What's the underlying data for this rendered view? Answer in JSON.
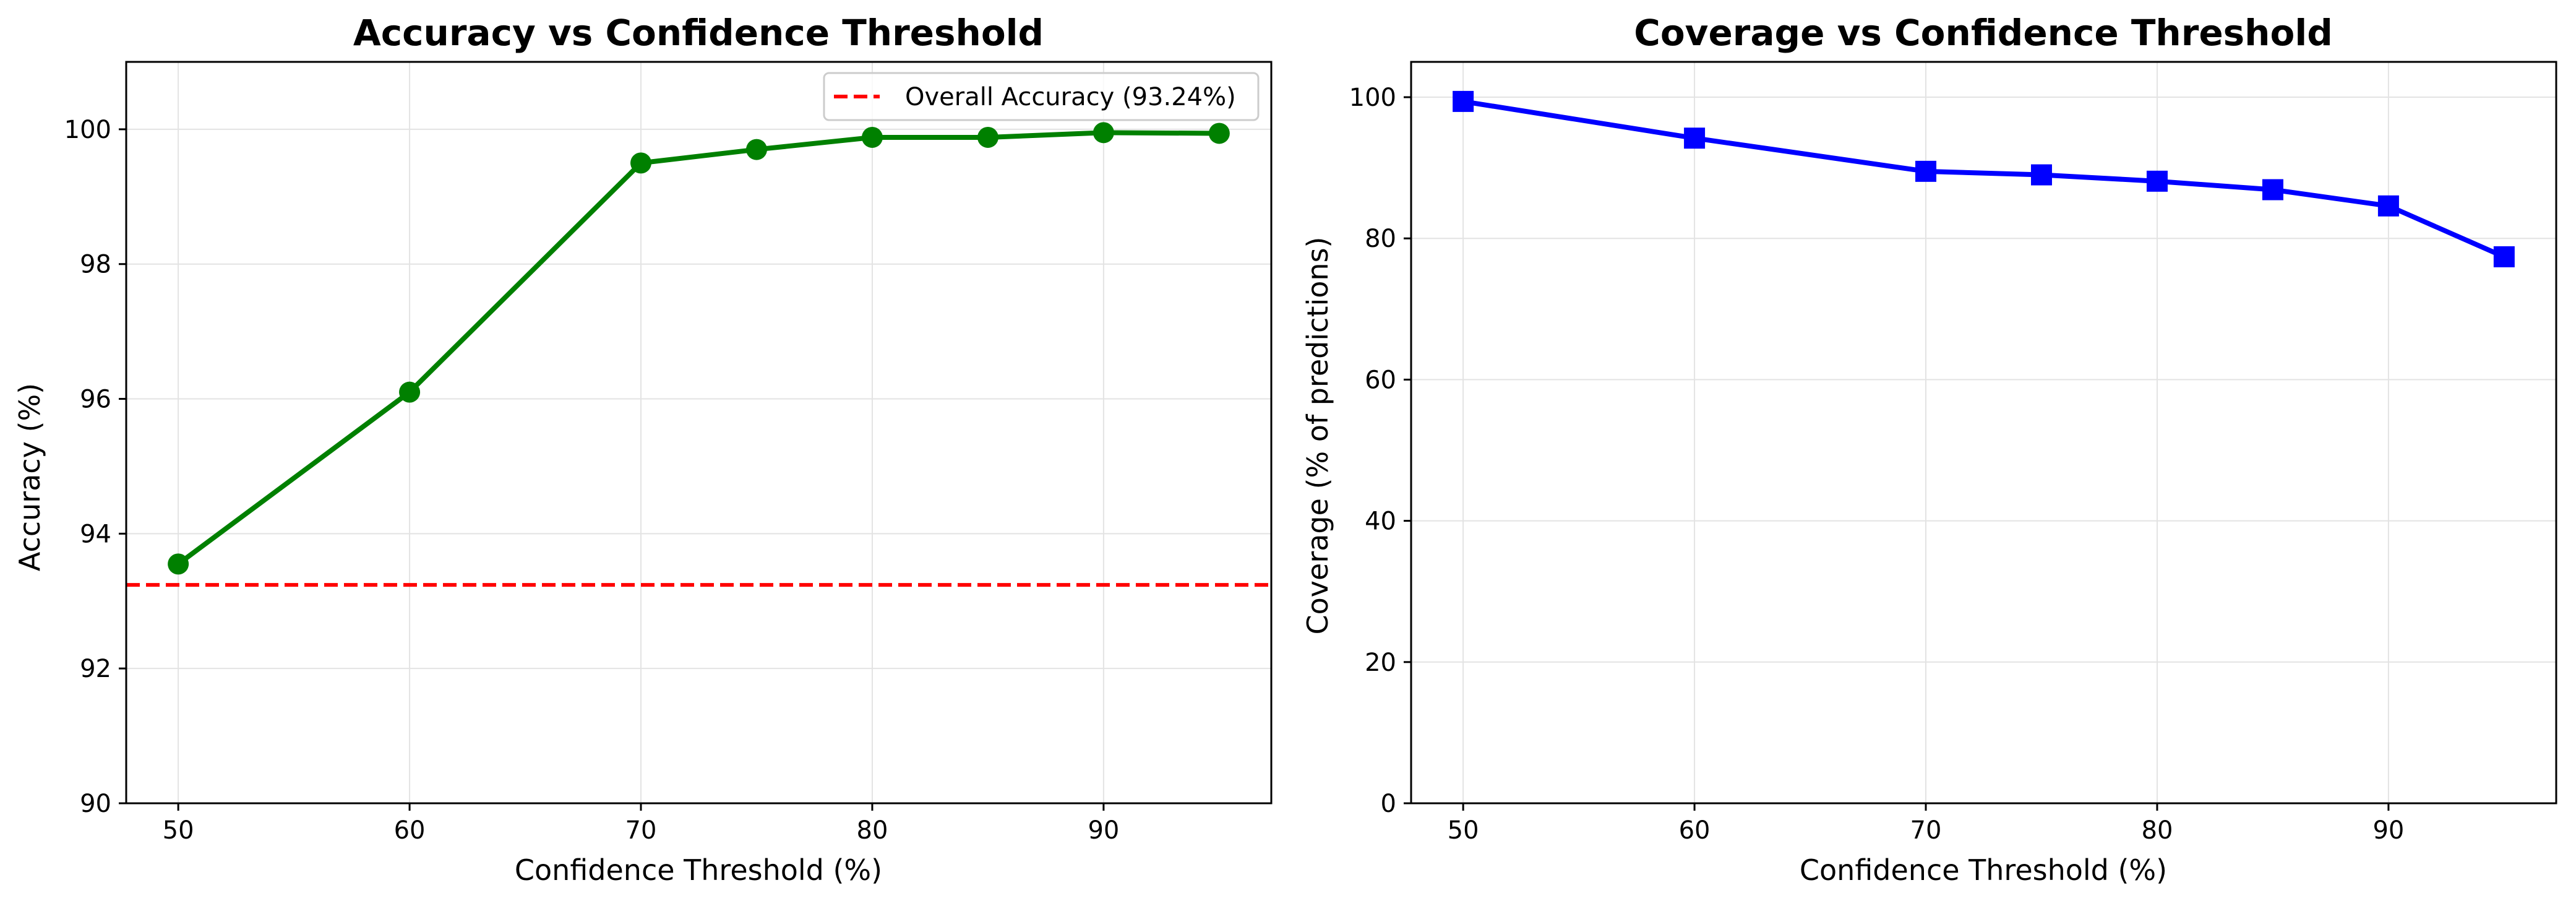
{
  "chart_data": [
    {
      "type": "line",
      "title": "Accuracy vs Confidence Threshold",
      "xlabel": "Confidence Threshold (%)",
      "ylabel": "Accuracy (%)",
      "xlim": [
        47.75,
        97.25
      ],
      "ylim": [
        90,
        101
      ],
      "xticks": [
        50,
        60,
        70,
        80,
        90
      ],
      "yticks": [
        90,
        92,
        94,
        96,
        98,
        100
      ],
      "grid": true,
      "legend_position": "top-right",
      "series": [
        {
          "x": [
            50,
            60,
            70,
            75,
            80,
            85,
            90,
            95
          ],
          "values": [
            93.55,
            96.1,
            99.5,
            99.7,
            99.88,
            99.88,
            99.95,
            99.94
          ],
          "color": "#008000",
          "marker": "circle"
        }
      ],
      "reference_lines": [
        {
          "name": "Overall Accuracy (93.24%)",
          "y": 93.24,
          "color": "#ff0000",
          "style": "dashed"
        }
      ]
    },
    {
      "type": "line",
      "title": "Coverage vs Confidence Threshold",
      "xlabel": "Confidence Threshold (%)",
      "ylabel": "Coverage (% of predictions)",
      "xlim": [
        47.75,
        97.25
      ],
      "ylim": [
        0,
        105
      ],
      "xticks": [
        50,
        60,
        70,
        80,
        90
      ],
      "yticks": [
        0,
        20,
        40,
        60,
        80,
        100
      ],
      "grid": true,
      "series": [
        {
          "x": [
            50,
            60,
            70,
            75,
            80,
            85,
            90,
            95
          ],
          "values": [
            99.4,
            94.2,
            89.5,
            89.0,
            88.1,
            86.9,
            84.6,
            77.4
          ],
          "color": "#0000ff",
          "marker": "square"
        }
      ]
    }
  ]
}
